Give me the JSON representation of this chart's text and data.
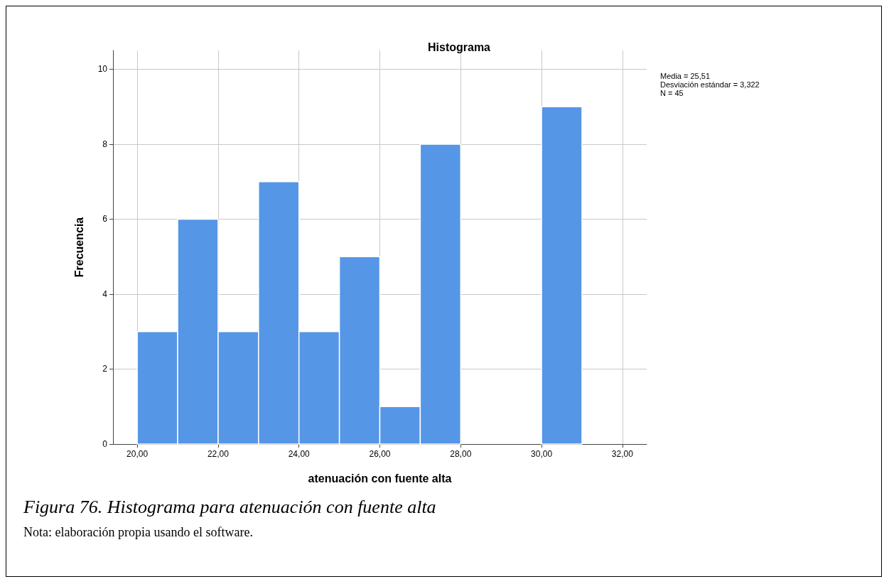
{
  "chart_data": {
    "type": "histogram",
    "title": "Histograma",
    "xlabel": "atenuación con fuente alta",
    "ylabel": "Frecuencia",
    "bins": [
      20,
      21,
      22,
      23,
      24,
      25,
      26,
      27,
      28,
      29,
      30,
      31
    ],
    "values": [
      3,
      6,
      3,
      7,
      3,
      5,
      1,
      8,
      0,
      0,
      9
    ],
    "color": "#5596e6",
    "xlim": [
      19.4,
      32.6
    ],
    "xticks": [
      {
        "value": 20,
        "label": "20,00"
      },
      {
        "value": 22,
        "label": "22,00"
      },
      {
        "value": 24,
        "label": "24,00"
      },
      {
        "value": 26,
        "label": "26,00"
      },
      {
        "value": 28,
        "label": "28,00"
      },
      {
        "value": 30,
        "label": "30,00"
      },
      {
        "value": 32,
        "label": "32,00"
      }
    ],
    "ylim": [
      0,
      10.5
    ],
    "yticks": [
      0,
      2,
      4,
      6,
      8,
      10
    ],
    "grid": true,
    "annotations": [
      "Media = 25,51",
      "Desviación estándar = 3,322",
      "N = 45",
      "Figura 76. Histograma para atenuación con fuente alta",
      "Nota: elaboración propia usando el software."
    ]
  }
}
